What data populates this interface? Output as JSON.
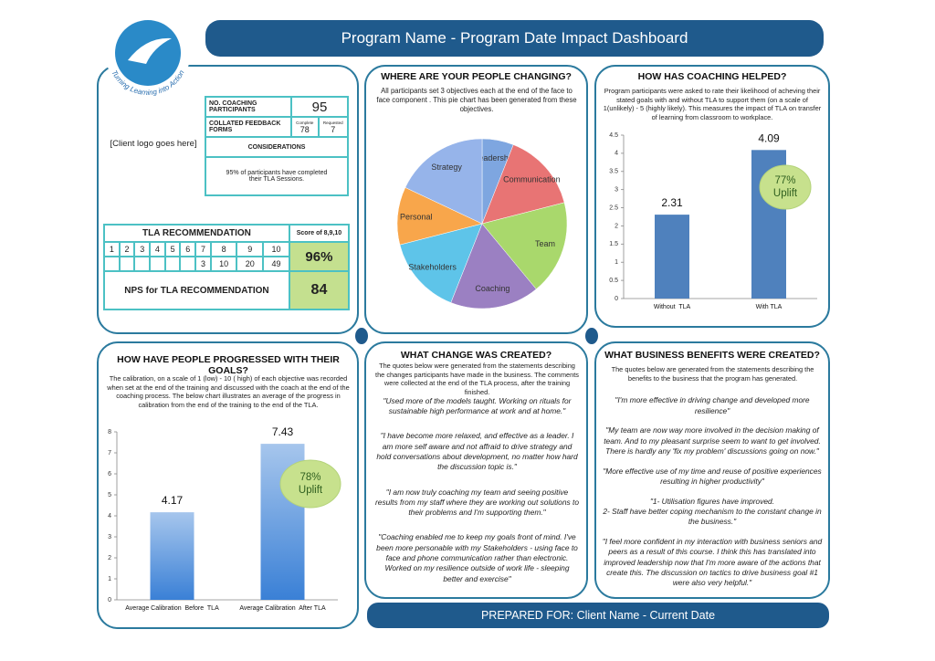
{
  "header": {
    "title": "Program Name - Program Date Impact Dashboard"
  },
  "logo": {
    "text": "Turning Learning into Action",
    "client_logo": "[Client logo goes here]"
  },
  "summary": {
    "participants_label": "NO. COACHING PARTICIPANTS",
    "participants": 95,
    "feedback_label": "COLLATED FEEDBACK FORMS",
    "complete_label": "Complete",
    "complete": 78,
    "requested_label": "Requested",
    "requested": 7,
    "considerations_label": "CONSIDERATIONS",
    "considerations": "95% of participants have completed their TLA Sessions."
  },
  "tla": {
    "title": "TLA RECOMMENDATION",
    "score_label": "Score of 8,9,10",
    "scale": [
      1,
      2,
      3,
      4,
      5,
      6,
      7,
      8,
      9,
      10
    ],
    "counts": [
      null,
      null,
      null,
      null,
      null,
      null,
      3,
      10,
      20,
      49
    ],
    "score": "96%",
    "nps_label": "NPS for TLA RECOMMENDATION",
    "nps": 84
  },
  "change": {
    "title": "WHAT CHANGE WAS CREATED?",
    "intro": "The quotes below were generated from the statements describing the changes participants have made in the business. The comments were collected at the end of the TLA process, after the training finished.",
    "quotes": [
      "\"Used more of the models taught. Working on rituals for sustainable high performance at work and at home.\"",
      "\"I have become more relaxed, and effective as a leader. I am more self aware and not affraid to drive strategy and hold conversations about development, no matter how hard the discussion topic is.\"",
      "\"I am now truly coaching my team and seeing positive results from my staff where they are working out solutions to their problems and I'm supporting them.\"",
      "\"Coaching enabled me to keep my goals front of mind. I've been more personable with my Stakeholders - using face to face and phone communication rather than electronic. Worked on my resilience outside of work life - sleeping better and exercise\""
    ]
  },
  "benefits": {
    "title": "WHAT BUSINESS BENEFITS WERE CREATED?",
    "intro": "The quotes below are generated from the statements describing the benefits to the business that the program has generated.",
    "quotes": [
      "\"I'm more effective in driving change and developed more resilience\"",
      "\"My team are now way more involved in the decision making of team. And to my pleasant surprise seem to want to get involved. There is hardly any 'fix my problem' discussions going on now.\"",
      "\"More effective use of my time and reuse of positive experiences resulting in higher productivity\"",
      "\"1- Utilisation figures have improved.\n2- Staff have better coping mechanism to the constant change in the business.\"",
      "\"I feel more confident in my interaction with business seniors and peers as a result of this course. I think this has translated into improved leadership now that I'm more aware of the actions that create this. The discussion on tactics to drive business goal #1 were also very helpful.\""
    ]
  },
  "footer": "PREPARED FOR:  Client Name - Current Date",
  "chart_data": [
    {
      "type": "pie",
      "title": "WHERE ARE YOUR PEOPLE CHANGING?",
      "subtitle": "All participants set 3 objectives each at the end of the face to face component . This pie chart has been generated from these objectives.",
      "categories": [
        "Leadership",
        "Communication",
        "Team",
        "Coaching",
        "Stakeholders",
        "Personal",
        "Strategy"
      ],
      "values": [
        6,
        15,
        18,
        17,
        15,
        11,
        18
      ],
      "colors": [
        "#7ea6e0",
        "#e87474",
        "#a9d86c",
        "#9b80c2",
        "#5ec4e9",
        "#f8a64b",
        "#96b4ea"
      ]
    },
    {
      "type": "bar",
      "title": "HOW HAS COACHING HELPED?",
      "subtitle": "Program participants were asked to rate their likelihood of acheving their stated goals with and without TLA  to support them (on a scale of 1(unlikely) - 5 (highly likely). This measures the impact of TLA on transfer of learning from classroom to workplace.",
      "categories": [
        "Without  TLA",
        "With TLA"
      ],
      "values": [
        2.31,
        4.09
      ],
      "color": "#4f81bd",
      "ylim": [
        0,
        4.5
      ],
      "yticks": [
        0,
        0.5,
        1,
        1.5,
        2,
        2.5,
        3,
        3.5,
        4,
        4.5
      ],
      "annotation": [
        "77%",
        "Uplift"
      ]
    },
    {
      "type": "bar",
      "title": "HOW HAVE PEOPLE PROGRESSED WITH THEIR GOALS?",
      "subtitle": "The calibration, on a scale of 1 (low) - 10 ( high) of each objective was recorded when set at the end of the training and discussed with the coach at the end of the coaching process. The below chart illustrates an average of the progress in calibration from the end of the training to the end of the TLA.",
      "categories": [
        "Average Calibration  Before  TLA",
        "Average Calibration  After TLA"
      ],
      "values": [
        4.17,
        7.43
      ],
      "color": "#3a80d6",
      "gradient": true,
      "ylim": [
        0,
        8
      ],
      "yticks": [
        0,
        1,
        2,
        3,
        4,
        5,
        6,
        7,
        8
      ],
      "annotation": [
        "78%",
        "Uplift"
      ]
    }
  ]
}
